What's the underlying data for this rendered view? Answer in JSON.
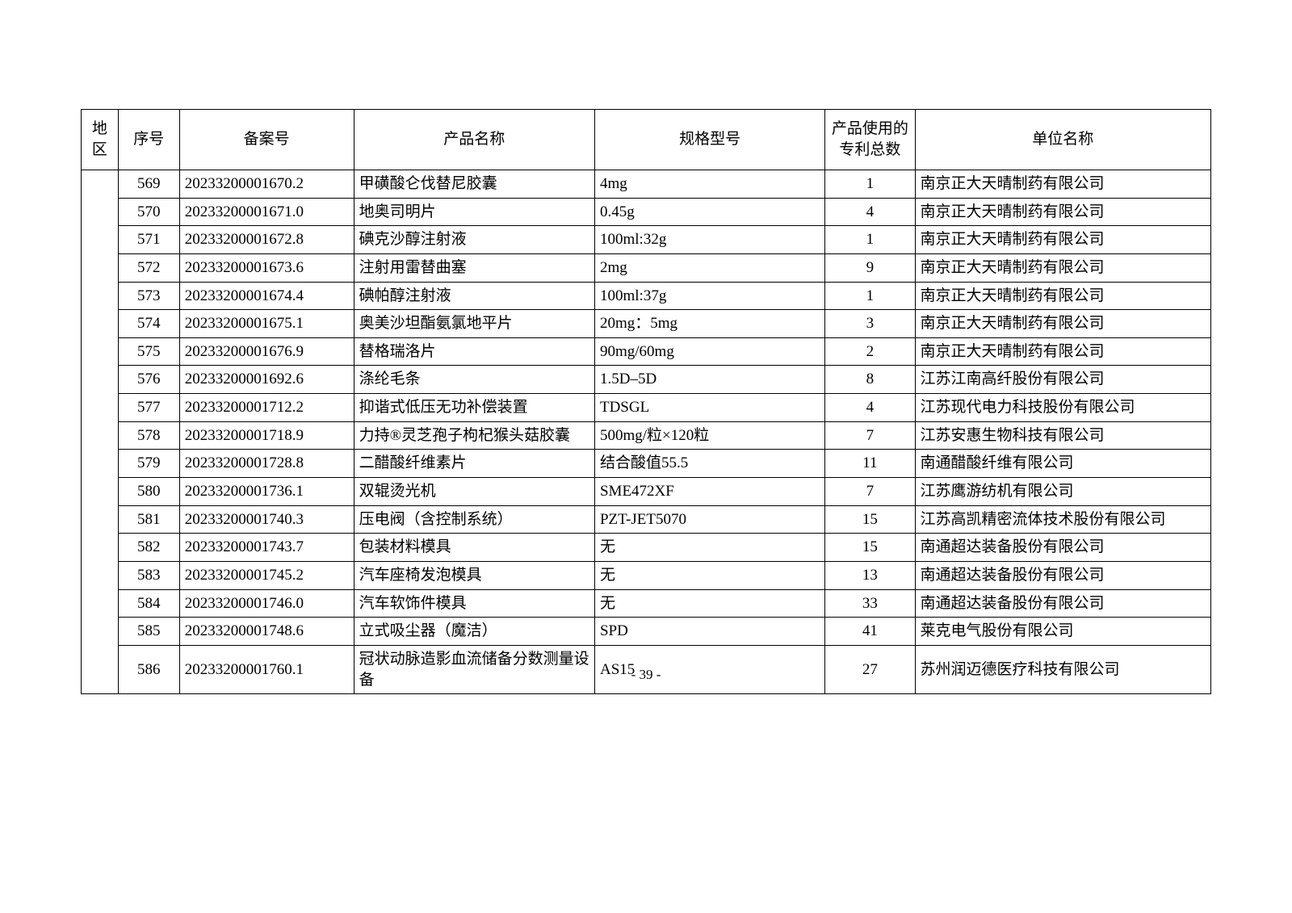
{
  "headers": {
    "region": "地区",
    "seq": "序号",
    "record_no": "备案号",
    "product_name": "产品名称",
    "spec": "规格型号",
    "patent_count": "产品使用的专利总数",
    "company": "单位名称"
  },
  "rows": [
    {
      "seq": "569",
      "record_no": "20233200001670.2",
      "product_name": "甲磺酸仑伐替尼胶囊",
      "spec": "4mg",
      "patent_count": "1",
      "company": "南京正大天晴制药有限公司"
    },
    {
      "seq": "570",
      "record_no": "20233200001671.0",
      "product_name": "地奥司明片",
      "spec": "0.45g",
      "patent_count": "4",
      "company": "南京正大天晴制药有限公司"
    },
    {
      "seq": "571",
      "record_no": "20233200001672.8",
      "product_name": "碘克沙醇注射液",
      "spec": "100ml:32g",
      "patent_count": "1",
      "company": "南京正大天晴制药有限公司"
    },
    {
      "seq": "572",
      "record_no": "20233200001673.6",
      "product_name": "注射用雷替曲塞",
      "spec": "2mg",
      "patent_count": "9",
      "company": "南京正大天晴制药有限公司"
    },
    {
      "seq": "573",
      "record_no": "20233200001674.4",
      "product_name": "碘帕醇注射液",
      "spec": "100ml:37g",
      "patent_count": "1",
      "company": "南京正大天晴制药有限公司"
    },
    {
      "seq": "574",
      "record_no": "20233200001675.1",
      "product_name": "奥美沙坦酯氨氯地平片",
      "spec": "20mg：5mg",
      "patent_count": "3",
      "company": "南京正大天晴制药有限公司"
    },
    {
      "seq": "575",
      "record_no": "20233200001676.9",
      "product_name": "替格瑞洛片",
      "spec": "90mg/60mg",
      "patent_count": "2",
      "company": "南京正大天晴制药有限公司"
    },
    {
      "seq": "576",
      "record_no": "20233200001692.6",
      "product_name": "涤纶毛条",
      "spec": "1.5D–5D",
      "patent_count": "8",
      "company": "江苏江南高纤股份有限公司"
    },
    {
      "seq": "577",
      "record_no": "20233200001712.2",
      "product_name": "抑谐式低压无功补偿装置",
      "spec": "TDSGL",
      "patent_count": "4",
      "company": "江苏现代电力科技股份有限公司"
    },
    {
      "seq": "578",
      "record_no": "20233200001718.9",
      "product_name": "力持®灵芝孢子枸杞猴头菇胶囊",
      "spec": "500mg/粒×120粒",
      "patent_count": "7",
      "company": "江苏安惠生物科技有限公司"
    },
    {
      "seq": "579",
      "record_no": "20233200001728.8",
      "product_name": "二醋酸纤维素片",
      "spec": "结合酸值55.5",
      "patent_count": "11",
      "company": "南通醋酸纤维有限公司"
    },
    {
      "seq": "580",
      "record_no": "20233200001736.1",
      "product_name": "双辊烫光机",
      "spec": "SME472XF",
      "patent_count": "7",
      "company": "江苏鹰游纺机有限公司"
    },
    {
      "seq": "581",
      "record_no": "20233200001740.3",
      "product_name": "压电阀（含控制系统）",
      "spec": "PZT-JET5070",
      "patent_count": "15",
      "company": "江苏高凯精密流体技术股份有限公司"
    },
    {
      "seq": "582",
      "record_no": "20233200001743.7",
      "product_name": "包装材料模具",
      "spec": "无",
      "patent_count": "15",
      "company": "南通超达装备股份有限公司"
    },
    {
      "seq": "583",
      "record_no": "20233200001745.2",
      "product_name": "汽车座椅发泡模具",
      "spec": "无",
      "patent_count": "13",
      "company": "南通超达装备股份有限公司"
    },
    {
      "seq": "584",
      "record_no": "20233200001746.0",
      "product_name": "汽车软饰件模具",
      "spec": "无",
      "patent_count": "33",
      "company": "南通超达装备股份有限公司"
    },
    {
      "seq": "585",
      "record_no": "20233200001748.6",
      "product_name": "立式吸尘器（魔洁）",
      "spec": "SPD",
      "patent_count": "41",
      "company": "莱克电气股份有限公司"
    },
    {
      "seq": "586",
      "record_no": "20233200001760.1",
      "product_name": "冠状动脉造影血流储备分数测量设备",
      "spec": "AS15",
      "patent_count": "27",
      "company": "苏州润迈德医疗科技有限公司"
    }
  ],
  "page_number": "- 39 -",
  "styling": {
    "font_family": "SimSun",
    "border_color": "#000000",
    "background_color": "#ffffff",
    "font_size_cell": 19,
    "font_size_page_number": 17,
    "column_widths": {
      "region": 35,
      "seq": 58,
      "record_no": 165,
      "product_name": 228,
      "spec": 218,
      "patent_count": 85,
      "company": 280
    }
  }
}
